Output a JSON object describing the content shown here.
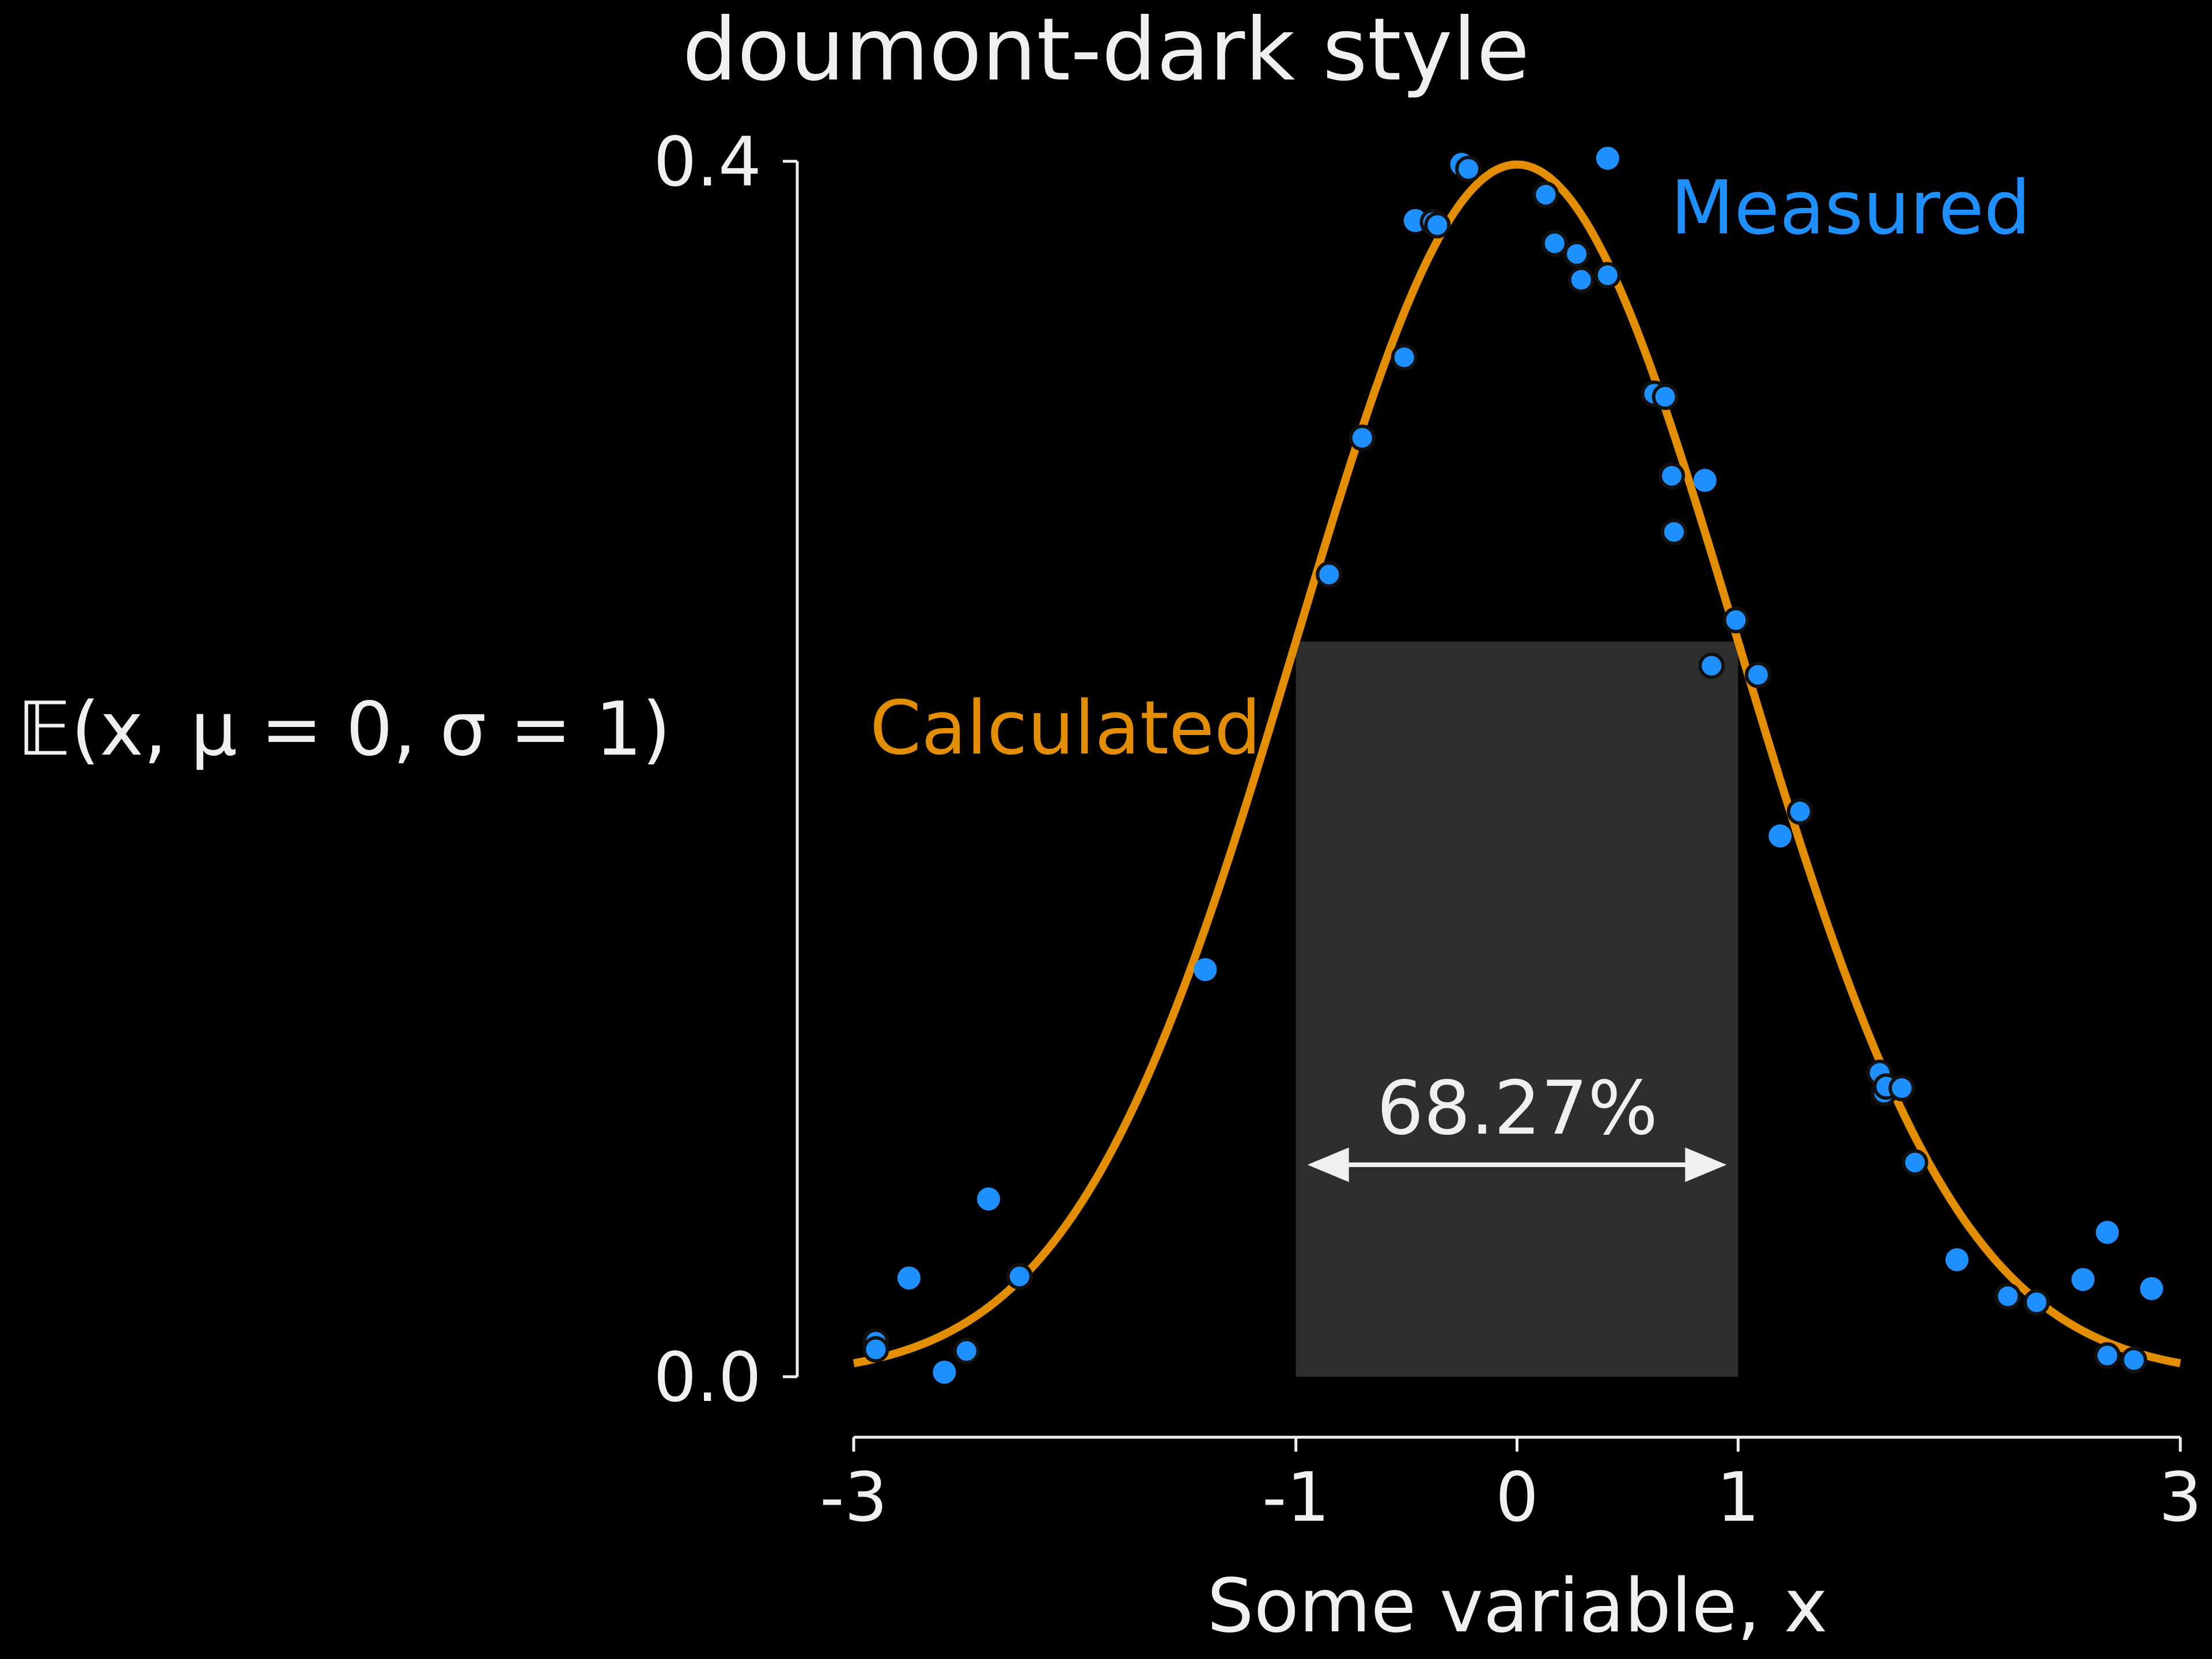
{
  "chart_data": {
    "type": "line",
    "title": "doumont-dark style",
    "xlabel": "Some variable, x",
    "ylabel": "𝔼(x, μ = 0, σ = 1)",
    "xlim": [
      -3,
      3
    ],
    "ylim": [
      0,
      0.4
    ],
    "xticks": [
      -3,
      -1,
      0,
      1,
      3
    ],
    "xtick_labels": [
      "-3",
      "-1",
      "0",
      "1",
      "3"
    ],
    "yticks": [
      0.0,
      0.4
    ],
    "ytick_labels": [
      "0.0",
      "0.4"
    ],
    "grid": false,
    "colors": {
      "background": "#000000",
      "foreground": "#f0f0f0",
      "calculated": "#e38e00",
      "measured": "#1e90ff",
      "shade": "#2e2e2e"
    },
    "series": [
      {
        "name": "Calculated",
        "kind": "line",
        "function": "standard normal pdf",
        "x_range": [
          -3,
          3
        ]
      },
      {
        "name": "Measured",
        "kind": "scatter",
        "points": [
          [
            -2.9,
            0.0115
          ],
          [
            -2.9,
            0.009
          ],
          [
            -2.75,
            0.0325
          ],
          [
            -2.59,
            0.0015
          ],
          [
            -2.49,
            0.0085
          ],
          [
            -2.39,
            0.0585
          ],
          [
            -2.25,
            0.033
          ],
          [
            -1.41,
            0.134
          ],
          [
            -0.85,
            0.264
          ],
          [
            -0.7,
            0.309
          ],
          [
            -0.51,
            0.3355
          ],
          [
            -0.46,
            0.3805
          ],
          [
            -0.38,
            0.38
          ],
          [
            -0.36,
            0.379
          ],
          [
            -0.25,
            0.399
          ],
          [
            -0.22,
            0.3975
          ],
          [
            0.13,
            0.389
          ],
          [
            0.17,
            0.373
          ],
          [
            0.27,
            0.3695
          ],
          [
            0.29,
            0.361
          ],
          [
            0.41,
            0.401
          ],
          [
            0.41,
            0.3625
          ],
          [
            0.62,
            0.3235
          ],
          [
            0.67,
            0.3225
          ],
          [
            0.7,
            0.2965
          ],
          [
            0.71,
            0.278
          ],
          [
            0.85,
            0.295
          ],
          [
            0.88,
            0.234
          ],
          [
            0.99,
            0.249
          ],
          [
            1.09,
            0.231
          ],
          [
            1.19,
            0.178
          ],
          [
            1.28,
            0.186
          ],
          [
            1.64,
            0.1
          ],
          [
            1.66,
            0.0935
          ],
          [
            1.67,
            0.0955
          ],
          [
            1.74,
            0.095
          ],
          [
            1.8,
            0.0705
          ],
          [
            1.99,
            0.0385
          ],
          [
            2.22,
            0.0265
          ],
          [
            2.35,
            0.0245
          ],
          [
            2.56,
            0.032
          ],
          [
            2.67,
            0.0475
          ],
          [
            2.67,
            0.007
          ],
          [
            2.79,
            0.0055
          ],
          [
            2.87,
            0.029
          ]
        ]
      }
    ],
    "shaded_region": {
      "x": [
        -1,
        1
      ],
      "label": "68.27%"
    },
    "annotations": {
      "calculated_label": "Calculated",
      "measured_label": "Measured",
      "percent_label": "68.27%"
    }
  }
}
